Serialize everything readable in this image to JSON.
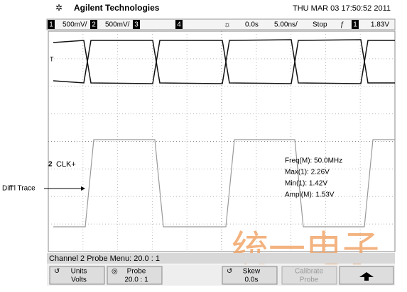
{
  "header": {
    "brand": "Agilent Technologies",
    "datetime": "THU MAR 03 17:50:52 2011"
  },
  "status_bar": {
    "ch1": "1",
    "ch1_scale": "500mV/",
    "ch2": "2",
    "ch2_scale": "500mV/",
    "ch3": "3",
    "ch4": "4",
    "delay": "0.0s",
    "timebase": "5.00ns/",
    "run_state": "Stop",
    "trigger_source": "1",
    "trigger_level": "1.83V"
  },
  "markers": {
    "trigger": "T",
    "channel": "2",
    "channel_label": "CLK+"
  },
  "measurements": [
    "Freq(M): 50.0MHz",
    "Max(1): 2.26V",
    "Min(1): 1.42V",
    "Ampl(M): 1.53V"
  ],
  "annotation": "Diff'l Trace",
  "watermark": "统一电子",
  "menu": {
    "title": "Channel 2 Probe Menu: 20.0 : 1",
    "softkeys": [
      {
        "label": "Units",
        "value": "Volts"
      },
      {
        "label": "Probe",
        "value": "20.0 : 1"
      },
      {
        "label": "Skew",
        "value": "0.0s"
      },
      {
        "label": "Calibrate",
        "value": "Probe"
      }
    ]
  }
}
